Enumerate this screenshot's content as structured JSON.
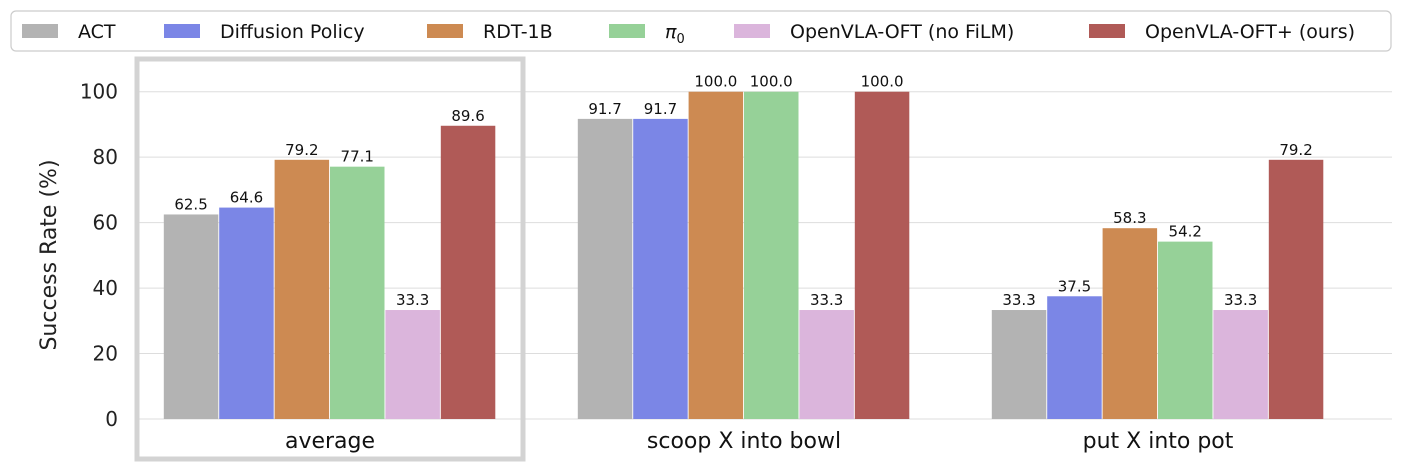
{
  "chart_data": {
    "type": "bar",
    "ylabel": "Success Rate (%)",
    "ylim": [
      0,
      110
    ],
    "yticks": [
      0,
      20,
      40,
      60,
      80,
      100
    ],
    "grid": "horizontal",
    "legend_position": "top",
    "highlighted_category": "average",
    "categories": [
      "average",
      "scoop X into bowl",
      "put X into pot"
    ],
    "series": [
      {
        "name": "ACT",
        "color": "#b3b3b3",
        "values": [
          62.5,
          91.7,
          33.3
        ]
      },
      {
        "name": "Diffusion Policy",
        "color": "#7b86e6",
        "values": [
          64.6,
          91.7,
          37.5
        ]
      },
      {
        "name": "RDT-1B",
        "color": "#cd8a52",
        "values": [
          79.2,
          100.0,
          58.3
        ]
      },
      {
        "name": "π0",
        "color": "#96d198",
        "values": [
          77.1,
          100.0,
          54.2
        ]
      },
      {
        "name": "OpenVLA-OFT (no FiLM)",
        "color": "#dbb5dc",
        "values": [
          33.3,
          33.3,
          33.3
        ]
      },
      {
        "name": "OpenVLA-OFT+ (ours)",
        "color": "#b05a57",
        "values": [
          89.6,
          100.0,
          79.2
        ]
      }
    ]
  }
}
